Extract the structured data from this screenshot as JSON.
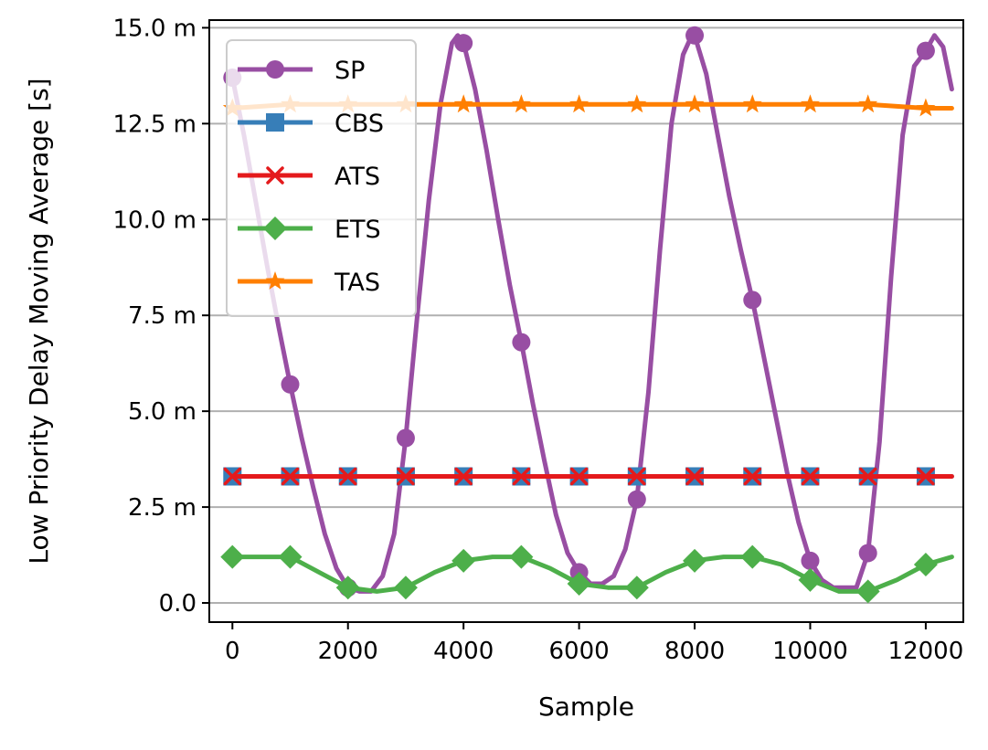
{
  "chart_data": {
    "type": "line",
    "title": "",
    "xlabel": "Sample",
    "ylabel": "Low Priority Delay Moving Average [s]",
    "xlim": [
      -400,
      12650
    ],
    "ylim": [
      -0.0005,
      0.0152
    ],
    "grid": "horizontal",
    "legend_position": "upper-left",
    "x_ticks": [
      0,
      2000,
      4000,
      6000,
      8000,
      10000,
      12000
    ],
    "x_tick_labels": [
      "0",
      "2000",
      "4000",
      "6000",
      "8000",
      "10000",
      "12000"
    ],
    "y_ticks": [
      0.0,
      0.0025,
      0.005,
      0.0075,
      0.01,
      0.0125,
      0.015
    ],
    "y_tick_labels": [
      "0.0",
      "2.5 m",
      "5.0 m",
      "7.5 m",
      "10.0 m",
      "12.5 m",
      "15.0 m"
    ],
    "series": [
      {
        "name": "SP",
        "color": "#984ea3",
        "marker": "circle",
        "x": [
          0,
          200,
          400,
          600,
          800,
          1000,
          1200,
          1400,
          1600,
          1800,
          2000,
          2200,
          2400,
          2600,
          2800,
          3000,
          3200,
          3400,
          3600,
          3800,
          3900,
          4000,
          4200,
          4400,
          4600,
          4800,
          5000,
          5200,
          5400,
          5600,
          5800,
          6000,
          6200,
          6400,
          6600,
          6800,
          7000,
          7200,
          7400,
          7600,
          7800,
          7950,
          8000,
          8200,
          8400,
          8600,
          8800,
          9000,
          9200,
          9400,
          9600,
          9800,
          10000,
          10200,
          10400,
          10600,
          10800,
          11000,
          11200,
          11400,
          11600,
          11800,
          12000,
          12150,
          12300,
          12450
        ],
        "y": [
          0.0137,
          0.0122,
          0.0105,
          0.0088,
          0.0072,
          0.0057,
          0.0043,
          0.003,
          0.0018,
          0.0009,
          0.0004,
          0.0003,
          0.0003,
          0.0007,
          0.0018,
          0.0043,
          0.0075,
          0.0105,
          0.013,
          0.0146,
          0.0148,
          0.0146,
          0.0134,
          0.0118,
          0.01,
          0.0083,
          0.0068,
          0.0052,
          0.0037,
          0.0023,
          0.0013,
          0.0008,
          0.0005,
          0.0005,
          0.0007,
          0.0014,
          0.0027,
          0.0055,
          0.0092,
          0.0125,
          0.0143,
          0.0148,
          0.0148,
          0.0138,
          0.0122,
          0.0106,
          0.0092,
          0.0079,
          0.0064,
          0.0049,
          0.0034,
          0.0021,
          0.0011,
          0.0006,
          0.0004,
          0.0004,
          0.0004,
          0.0013,
          0.0042,
          0.0085,
          0.0122,
          0.014,
          0.0144,
          0.0148,
          0.0145,
          0.0134
        ],
        "markers_x": [
          0,
          1000,
          2000,
          3000,
          4000,
          5000,
          6000,
          7000,
          8000,
          9000,
          10000,
          11000,
          12000
        ],
        "markers_y": [
          0.0137,
          0.0057,
          0.0004,
          0.0043,
          0.0146,
          0.0068,
          0.0008,
          0.0027,
          0.0148,
          0.0079,
          0.0011,
          0.0013,
          0.0144
        ]
      },
      {
        "name": "CBS",
        "color": "#377eb8",
        "marker": "square",
        "x": [
          0,
          1000,
          2000,
          3000,
          4000,
          5000,
          6000,
          7000,
          8000,
          9000,
          10000,
          11000,
          12000,
          12450
        ],
        "y": [
          0.0033,
          0.0033,
          0.0033,
          0.0033,
          0.0033,
          0.0033,
          0.0033,
          0.0033,
          0.0033,
          0.0033,
          0.0033,
          0.0033,
          0.0033,
          0.0033
        ],
        "markers_x": [
          0,
          1000,
          2000,
          3000,
          4000,
          5000,
          6000,
          7000,
          8000,
          9000,
          10000,
          11000,
          12000
        ],
        "markers_y": [
          0.0033,
          0.0033,
          0.0033,
          0.0033,
          0.0033,
          0.0033,
          0.0033,
          0.0033,
          0.0033,
          0.0033,
          0.0033,
          0.0033,
          0.0033
        ]
      },
      {
        "name": "ATS",
        "color": "#e41a1c",
        "marker": "x",
        "x": [
          0,
          1000,
          2000,
          3000,
          4000,
          5000,
          6000,
          7000,
          8000,
          9000,
          10000,
          11000,
          12000,
          12450
        ],
        "y": [
          0.0033,
          0.0033,
          0.0033,
          0.0033,
          0.0033,
          0.0033,
          0.0033,
          0.0033,
          0.0033,
          0.0033,
          0.0033,
          0.0033,
          0.0033,
          0.0033
        ],
        "markers_x": [
          0,
          1000,
          2000,
          3000,
          4000,
          5000,
          6000,
          7000,
          8000,
          9000,
          10000,
          11000,
          12000
        ],
        "markers_y": [
          0.0033,
          0.0033,
          0.0033,
          0.0033,
          0.0033,
          0.0033,
          0.0033,
          0.0033,
          0.0033,
          0.0033,
          0.0033,
          0.0033,
          0.0033
        ]
      },
      {
        "name": "ETS",
        "color": "#4daf4a",
        "marker": "diamond",
        "x": [
          0,
          500,
          1000,
          1500,
          2000,
          2500,
          3000,
          3500,
          4000,
          4500,
          5000,
          5500,
          6000,
          6500,
          7000,
          7500,
          8000,
          8500,
          9000,
          9500,
          10000,
          10500,
          11000,
          11500,
          12000,
          12450
        ],
        "y": [
          0.0012,
          0.0012,
          0.0012,
          0.0008,
          0.0004,
          0.0003,
          0.0004,
          0.0008,
          0.0011,
          0.0012,
          0.0012,
          0.0009,
          0.0005,
          0.0004,
          0.0004,
          0.0008,
          0.0011,
          0.0012,
          0.0012,
          0.001,
          0.0006,
          0.0003,
          0.0003,
          0.0006,
          0.001,
          0.0012
        ],
        "markers_x": [
          0,
          1000,
          2000,
          3000,
          4000,
          5000,
          6000,
          7000,
          8000,
          9000,
          10000,
          11000,
          12000
        ],
        "markers_y": [
          0.0012,
          0.0012,
          0.0004,
          0.0004,
          0.0011,
          0.0012,
          0.0005,
          0.0004,
          0.0011,
          0.0012,
          0.0006,
          0.0003,
          0.001
        ]
      },
      {
        "name": "TAS",
        "color": "#ff7f00",
        "marker": "star",
        "x": [
          0,
          1000,
          2000,
          3000,
          4000,
          5000,
          6000,
          7000,
          8000,
          9000,
          10000,
          11000,
          12000,
          12450
        ],
        "y": [
          0.0129,
          0.013,
          0.013,
          0.013,
          0.013,
          0.013,
          0.013,
          0.013,
          0.013,
          0.013,
          0.013,
          0.013,
          0.0129,
          0.0129
        ],
        "markers_x": [
          0,
          1000,
          2000,
          3000,
          4000,
          5000,
          6000,
          7000,
          8000,
          9000,
          10000,
          11000,
          12000
        ],
        "markers_y": [
          0.0129,
          0.013,
          0.013,
          0.013,
          0.013,
          0.013,
          0.013,
          0.013,
          0.013,
          0.013,
          0.013,
          0.013,
          0.0129
        ]
      }
    ]
  }
}
